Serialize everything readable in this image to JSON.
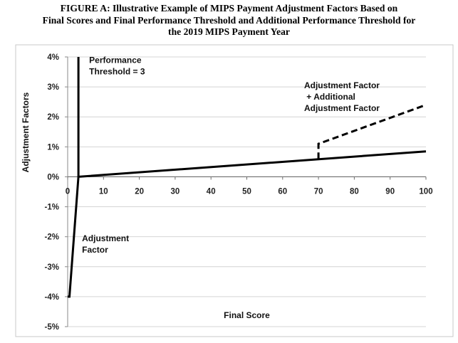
{
  "figure": {
    "title_lines": [
      "FIGURE A:  Illustrative Example of MIPS Payment Adjustment Factors Based on",
      "Final Scores and Final Performance Threshold and Additional Performance Threshold for",
      "the 2019 MIPS Payment Year"
    ]
  },
  "chart_data": {
    "type": "line",
    "xlabel": "Final Score",
    "ylabel": "Adjustment Factors",
    "xlim": [
      0,
      100
    ],
    "ylim": [
      -5,
      4
    ],
    "x_ticks": [
      "0",
      "10",
      "20",
      "30",
      "40",
      "50",
      "60",
      "70",
      "80",
      "90",
      "100"
    ],
    "y_ticks": [
      "4%",
      "3%",
      "2%",
      "1%",
      "0%",
      "-1%",
      "-2%",
      "-3%",
      "-4%",
      "-5%"
    ],
    "y_tick_values": [
      4,
      3,
      2,
      1,
      0,
      -1,
      -2,
      -3,
      -4,
      -5
    ],
    "grid": "horizontal",
    "series": [
      {
        "style": "solid",
        "points": [
          [
            0,
            -4
          ],
          [
            0.5,
            -4
          ],
          [
            3,
            0
          ],
          [
            100,
            0.85
          ]
        ]
      },
      {
        "style": "solid",
        "points": [
          [
            3,
            0
          ],
          [
            3,
            4
          ]
        ]
      },
      {
        "style": "dashed",
        "points": [
          [
            70,
            0.6
          ],
          [
            70,
            1.1
          ],
          [
            100,
            2.4
          ]
        ]
      }
    ],
    "annotations": [
      {
        "lines": [
          "Performance",
          "Threshold = 3"
        ],
        "x": 6,
        "y": 3.8
      },
      {
        "lines": [
          "Adjustment Factor",
          " + Additional",
          "Adjustment Factor"
        ],
        "x": 66,
        "y": 2.95
      },
      {
        "lines": [
          "Adjustment",
          "Factor"
        ],
        "x": 4,
        "y": -2.15
      }
    ]
  }
}
